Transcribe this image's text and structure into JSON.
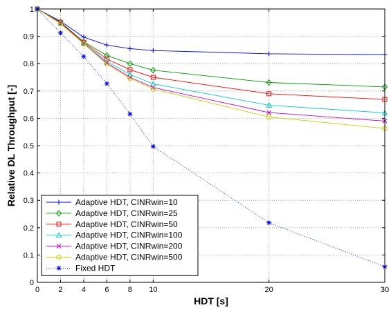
{
  "chart_data": {
    "type": "line",
    "xlabel": "HDT [s]",
    "ylabel": "Relative DL Throughput [-]",
    "xlim": [
      0,
      30
    ],
    "ylim": [
      0,
      1
    ],
    "xticks": [
      0,
      2,
      4,
      6,
      8,
      10,
      20,
      30
    ],
    "yticks": [
      0,
      0.1,
      0.2,
      0.3,
      0.4,
      0.5,
      0.6,
      0.7,
      0.8,
      0.9,
      1
    ],
    "grid": true,
    "legend_position": "bottom-left",
    "x": [
      0,
      2,
      4,
      6,
      8,
      10,
      20,
      30
    ],
    "series": [
      {
        "name": "Adaptive HDT, CINRwin=10",
        "color": "#0000ff",
        "marker": "plus",
        "dashed": false,
        "values": [
          1.0,
          0.955,
          0.897,
          0.868,
          0.855,
          0.848,
          0.836,
          0.833
        ]
      },
      {
        "name": "Adaptive HDT, CINRwin=25",
        "color": "#009900",
        "marker": "diamond",
        "dashed": false,
        "values": [
          1.0,
          0.952,
          0.88,
          0.83,
          0.8,
          0.776,
          0.731,
          0.715
        ]
      },
      {
        "name": "Adaptive HDT, CINRwin=50",
        "color": "#ff0000",
        "marker": "square",
        "dashed": false,
        "values": [
          1.0,
          0.95,
          0.878,
          0.817,
          0.778,
          0.75,
          0.69,
          0.669
        ]
      },
      {
        "name": "Adaptive HDT, CINRwin=100",
        "color": "#00cccc",
        "marker": "triangle",
        "dashed": false,
        "values": [
          1.0,
          0.948,
          0.875,
          0.807,
          0.76,
          0.726,
          0.648,
          0.62
        ]
      },
      {
        "name": "Adaptive HDT, CINRwin=200",
        "color": "#cc00cc",
        "marker": "x",
        "dashed": false,
        "values": [
          1.0,
          0.947,
          0.874,
          0.802,
          0.75,
          0.713,
          0.621,
          0.59
        ]
      },
      {
        "name": "Adaptive HDT, CINRwin=500",
        "color": "#cccc00",
        "marker": "circle",
        "dashed": false,
        "values": [
          1.0,
          0.946,
          0.873,
          0.799,
          0.746,
          0.707,
          0.605,
          0.563
        ]
      },
      {
        "name": "Fixed HDT",
        "color": "#0000ff",
        "marker": "star",
        "dashed": true,
        "values": [
          1.0,
          0.912,
          0.826,
          0.727,
          0.616,
          0.497,
          0.218,
          0.057
        ]
      }
    ]
  }
}
